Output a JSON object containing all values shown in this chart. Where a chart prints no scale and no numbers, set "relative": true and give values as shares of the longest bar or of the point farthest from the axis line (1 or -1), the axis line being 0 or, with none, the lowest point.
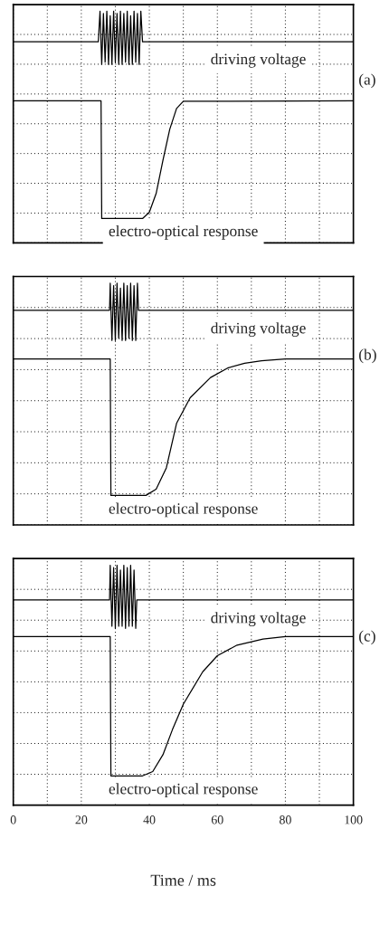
{
  "chart_data": [
    {
      "type": "line",
      "relative": true,
      "xlim": [
        0,
        100
      ],
      "xticks": [
        0,
        {
          "value": 10,
          "label": null
        },
        20,
        {
          "value": 30,
          "label": null
        },
        40,
        {
          "value": 50,
          "label": null
        },
        60,
        {
          "value": 70,
          "label": null
        },
        80,
        {
          "value": 90,
          "label": null
        },
        100
      ],
      "tick_labels": false,
      "grid": true,
      "annotations": [
        "(a)"
      ],
      "series": [
        {
          "name": "driving voltage",
          "color": "#000000",
          "x": [
            0,
            25,
            25.5,
            26,
            26.5,
            27,
            27.5,
            28,
            28.5,
            29,
            29.5,
            30,
            30.5,
            31,
            31.5,
            32,
            32.5,
            33,
            33.5,
            34,
            34.5,
            35,
            35.5,
            36,
            36.5,
            37,
            37.5,
            38,
            100
          ],
          "values": [
            0.868,
            0.868,
            1,
            0.77,
            0.99,
            0.78,
            1,
            0.77,
            0.98,
            0.77,
            1,
            0.78,
            0.99,
            0.77,
            1,
            0.77,
            0.99,
            0.78,
            1,
            0.77,
            0.98,
            0.77,
            1,
            0.78,
            0.99,
            0.77,
            1,
            0.868,
            0.868
          ]
        },
        {
          "name": "electro-optical response",
          "color": "#000000",
          "x": [
            0,
            25.8,
            26,
            38,
            40,
            42,
            44,
            46,
            48,
            50,
            100
          ],
          "values": [
            0.613,
            0.613,
            0.105,
            0.105,
            0.132,
            0.213,
            0.356,
            0.49,
            0.58,
            0.611,
            0.613
          ]
        }
      ]
    },
    {
      "type": "line",
      "relative": true,
      "xlim": [
        0,
        100
      ],
      "xticks": [
        0,
        {
          "value": 10,
          "label": null
        },
        20,
        {
          "value": 30,
          "label": null
        },
        40,
        {
          "value": 50,
          "label": null
        },
        60,
        {
          "value": 70,
          "label": null
        },
        80,
        {
          "value": 90,
          "label": null
        },
        100
      ],
      "tick_labels": false,
      "grid": true,
      "annotations": [
        "(b)"
      ],
      "series": [
        {
          "name": "driving voltage",
          "color": "#000000",
          "x": [
            0,
            28.3,
            28.5,
            29,
            29.5,
            30,
            30.5,
            31,
            31.5,
            32,
            32.5,
            33,
            33.5,
            34,
            34.5,
            35,
            35.5,
            36,
            36.5,
            36.8,
            100
          ],
          "values": [
            0.888,
            0.888,
            1,
            0.763,
            0.99,
            0.763,
            1,
            0.772,
            0.98,
            0.763,
            1,
            0.763,
            0.99,
            0.772,
            1,
            0.763,
            0.99,
            0.763,
            1,
            0.888,
            0.888
          ]
        },
        {
          "name": "electro-optical response",
          "color": "#000000",
          "x": [
            0,
            28.5,
            28.7,
            39,
            42,
            45,
            48,
            52,
            58,
            63,
            68,
            73,
            80,
            100
          ],
          "values": [
            0.687,
            0.687,
            0.122,
            0.122,
            0.148,
            0.236,
            0.42,
            0.526,
            0.61,
            0.649,
            0.669,
            0.679,
            0.687,
            0.687
          ]
        }
      ]
    },
    {
      "type": "line",
      "relative": true,
      "xlim": [
        0,
        100
      ],
      "xticks": [
        0,
        {
          "value": 10,
          "label": null
        },
        20,
        {
          "value": 30,
          "label": null
        },
        40,
        {
          "value": 50,
          "label": null
        },
        60,
        {
          "value": 70,
          "label": null
        },
        80,
        {
          "value": 90,
          "label": null
        },
        100
      ],
      "tick_labels": "x",
      "grid": true,
      "xlabel": "Time / ms",
      "annotations": [
        "(c)"
      ],
      "series": [
        {
          "name": "driving voltage",
          "color": "#000000",
          "x": [
            0,
            28.3,
            28.5,
            29,
            29.5,
            30,
            30.5,
            31,
            31.5,
            32,
            32.5,
            33,
            33.5,
            34,
            34.5,
            35,
            35.5,
            36,
            36.3,
            100
          ],
          "values": [
            0.855,
            0.855,
            1,
            0.746,
            0.99,
            0.737,
            1,
            0.746,
            0.98,
            0.746,
            1,
            0.737,
            0.99,
            0.746,
            1,
            0.746,
            0.98,
            0.737,
            0.855,
            0.855
          ]
        },
        {
          "name": "electro-optical response",
          "color": "#000000",
          "x": [
            0,
            28.5,
            28.7,
            38,
            41,
            44,
            46.8,
            50,
            55.7,
            60,
            65.8,
            73.4,
            80,
            100
          ],
          "values": [
            0.703,
            0.703,
            0.122,
            0.122,
            0.14,
            0.21,
            0.315,
            0.421,
            0.556,
            0.623,
            0.667,
            0.692,
            0.703,
            0.703
          ]
        }
      ]
    }
  ]
}
